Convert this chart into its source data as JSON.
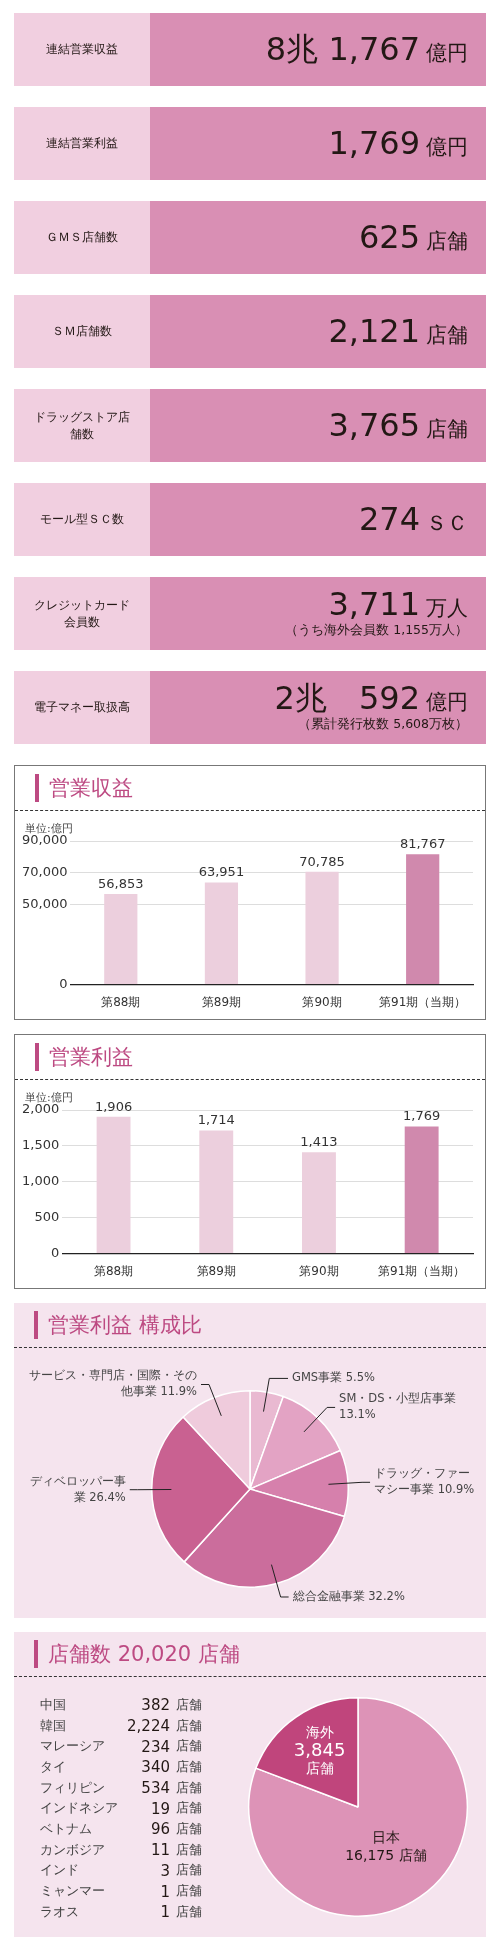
{
  "chart_data": [
    {
      "type": "other",
      "categories": [
        "連結営業収益",
        "連結営業利益",
        "ＧＭＳ店舗数",
        "ＳＭ店舗数",
        "ドラッグストア店舗数",
        "モール型ＳＣ数",
        "クレジットカード会員数",
        "電子マネー取扱高"
      ],
      "value_labels": [
        "8兆 1,767 億円",
        "1,769 億円",
        "625 店舗",
        "2,121 店舗",
        "3,765 店舗",
        "274 ＳＣ",
        "3,711 万人",
        "2兆　592 億円"
      ],
      "annotations": [
        {
          "text": "（うち海外会員数 1,155万人）",
          "x": "クレジットカード会員数"
        },
        {
          "text": "（累計発行枚数 5,608万枚）",
          "x": "電子マネー取扱高"
        }
      ]
    },
    {
      "type": "bar",
      "title": "営業収益",
      "ylabel": "単位:億円",
      "categories": [
        "第88期",
        "第89期",
        "第90期",
        "第91期（当期）"
      ],
      "values": [
        56853,
        63951,
        70785,
        81767
      ],
      "value_labels": [
        "56,853",
        "63,951",
        "70,785",
        "81,767"
      ],
      "colors": [
        "#eccfdd",
        "#eccfdd",
        "#eccfdd",
        "#d089ad"
      ],
      "ylim": [
        0,
        90000
      ],
      "yticks": [
        {
          "value": 0,
          "label": "0"
        },
        {
          "value": 50000,
          "label": "50,000"
        },
        {
          "value": 70000,
          "label": "70,000"
        },
        {
          "value": 90000,
          "label": "90,000"
        }
      ],
      "grid": "y"
    },
    {
      "type": "bar",
      "title": "営業利益",
      "ylabel": "単位:億円",
      "categories": [
        "第88期",
        "第89期",
        "第90期",
        "第91期（当期）"
      ],
      "values": [
        1906,
        1714,
        1413,
        1769
      ],
      "value_labels": [
        "1,906",
        "1,714",
        "1,413",
        "1,769"
      ],
      "colors": [
        "#eccfdd",
        "#eccfdd",
        "#eccfdd",
        "#d089ad"
      ],
      "ylim": [
        0,
        2000
      ],
      "yticks": [
        {
          "value": 0,
          "label": "0"
        },
        {
          "value": 500,
          "label": "500"
        },
        {
          "value": 1000,
          "label": "1,000"
        },
        {
          "value": 1500,
          "label": "1,500"
        },
        {
          "value": 2000,
          "label": "2,000"
        }
      ],
      "grid": "y"
    },
    {
      "type": "pie",
      "title": "営業利益 構成比",
      "categories": [
        "GMS事業",
        "SM・DS・小型店事業",
        "ドラッグ・ファーマシー事業",
        "総合金融事業",
        "ディベロッパー事業",
        "サービス・専門店・国際・その他事業"
      ],
      "values": [
        5.5,
        13.1,
        10.9,
        32.2,
        26.4,
        11.9
      ],
      "colors": [
        "#e9b9d1",
        "#e3a3c4",
        "#d680ac",
        "#cb6d9c",
        "#c96191",
        "#efcbdc"
      ],
      "value_labels": [
        "5.5%",
        "13.1%",
        "10.9%",
        "32.2%",
        "26.4%",
        "11.9%"
      ]
    },
    {
      "type": "pie",
      "title": "店舗数 20,020 店舗",
      "categories": [
        "日本",
        "海外"
      ],
      "values": [
        16175,
        3845
      ],
      "colors": [
        "#dd93b7",
        "#c0457c"
      ],
      "value_labels": [
        "16,175 店舗",
        "3,845 店舗"
      ],
      "annotations": [
        "中国 382 店舗",
        "韓国 2,224 店舗",
        "マレーシア 234 店舗",
        "タイ 340 店舗",
        "フィリピン 534 店舗",
        "インドネシア 19 店舗",
        "ベトナム 96 店舗",
        "カンボジア 11 店舗",
        "インド 3 店舗",
        "ミャンマー 1 店舗",
        "ラオス 1 店舗"
      ]
    }
  ]
}
